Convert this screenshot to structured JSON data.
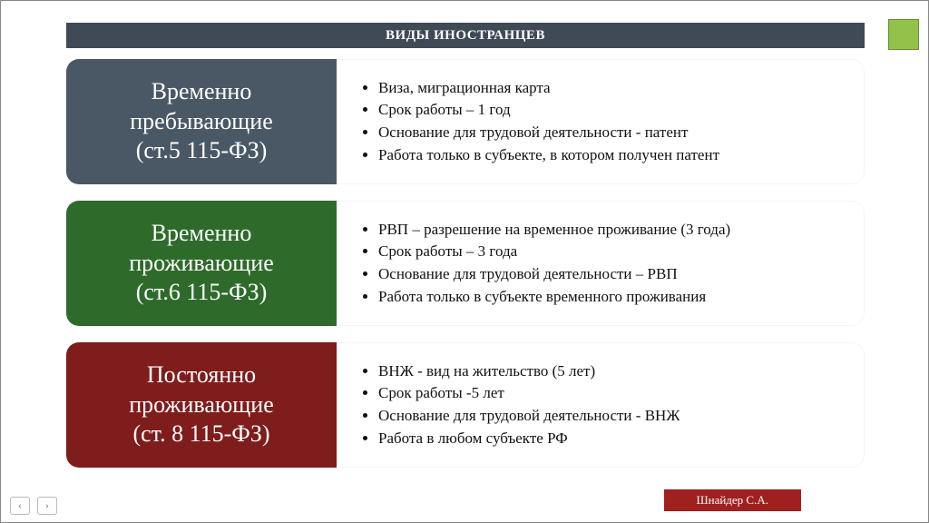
{
  "title": "ВИДЫ ИНОСТРАНЦЕВ",
  "title_bar_color": "#3f4a56",
  "accent_square_color": "#93c24a",
  "footer": {
    "label": "Шнайдер С.А.",
    "bg": "#a01f1f"
  },
  "rows": [
    {
      "card_bg": "#4a5866",
      "card_line1": "Временно",
      "card_line2": "пребывающие",
      "card_line3": "(ст.5 115-ФЗ)",
      "b1": "Виза, миграционная карта",
      "b2": "Срок работы – 1 год",
      "b3": "Основание для трудовой деятельности  - патент",
      "b4": "Работа только в субъекте, в котором получен патент"
    },
    {
      "card_bg": "#2e6b2b",
      "card_line1": "Временно",
      "card_line2": "проживающие",
      "card_line3": "(ст.6 115-ФЗ)",
      "b1": "РВП – разрешение на временное проживание (3 года)",
      "b2": "Срок работы – 3 года",
      "b3": "Основание для трудовой деятельности – РВП",
      "b4": "Работа только в субъекте временного проживания"
    },
    {
      "card_bg": "#7f1c1c",
      "card_line1": "Постоянно",
      "card_line2": "проживающие",
      "card_line3": "(ст. 8 115-ФЗ)",
      "b1": "ВНЖ - вид на жительство (5 лет)",
      "b2": "Срок работы -5 лет",
      "b3": "Основание для трудовой деятельности  - ВНЖ",
      "b4": "Работа в любом субъекте РФ"
    }
  ]
}
